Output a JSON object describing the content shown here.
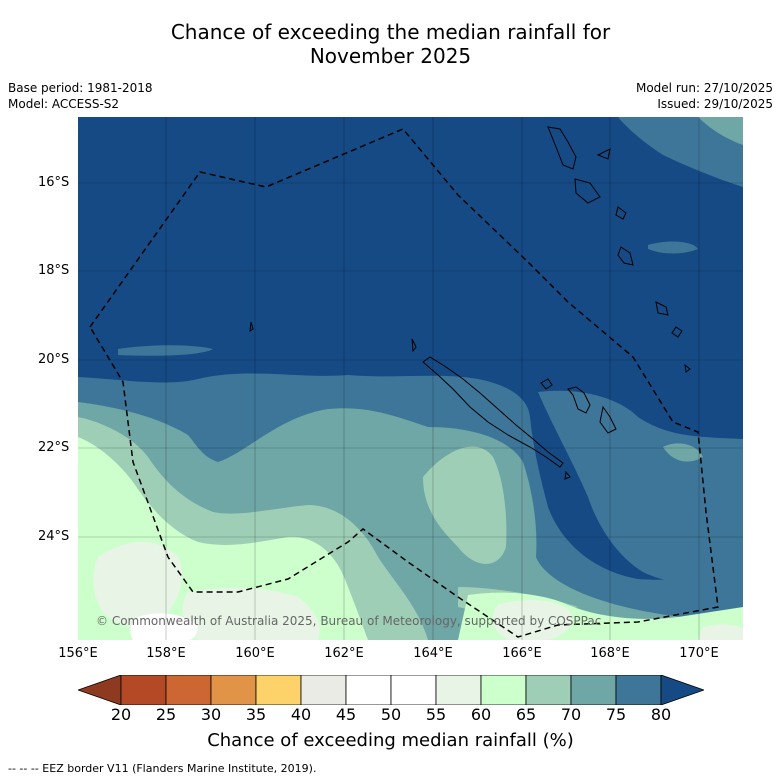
{
  "title_line1": "Chance of exceeding the median rainfall for",
  "title_line2": "November 2025",
  "meta_left": {
    "base_period": "Base period: 1981-2018",
    "model": "Model: ACCESS-S2"
  },
  "meta_right": {
    "model_run": "Model run: 27/10/2025",
    "issued": "Issued: 29/10/2025"
  },
  "lat_labels": [
    "16°S",
    "18°S",
    "20°S",
    "22°S",
    "24°S"
  ],
  "lon_labels": [
    "156°E",
    "158°E",
    "160°E",
    "162°E",
    "164°E",
    "166°E",
    "168°E",
    "170°E"
  ],
  "copyright": "© Commonwealth of Australia 2025, Bureau of Meteorology, supported by COSPPac",
  "colorbar": {
    "ticks": [
      "20",
      "25",
      "30",
      "35",
      "40",
      "45",
      "50",
      "55",
      "60",
      "65",
      "70",
      "75",
      "80"
    ],
    "label": "Chance of exceeding median rainfall (%)",
    "colors": [
      "#8e3a20",
      "#b34a25",
      "#cc6633",
      "#e19447",
      "#fdd26b",
      "#ebebe6",
      "#ffffff",
      "#ffffff",
      "#e8f5e6",
      "#ccffcc",
      "#9ecfb6",
      "#6fa6a6",
      "#3e7699",
      "#154a85"
    ]
  },
  "footnote": "--  --  -- EEZ border V11 (Flanders Marine Institute, 2019).",
  "palette": {
    "p75_80": "#154a85",
    "p70_75": "#3e7699",
    "p65_70": "#6fa6a6",
    "p60_65": "#9ecfb6",
    "p55_60": "#ccffcc",
    "p50_55": "#e8f5e6",
    "p45_50": "#ffffff"
  }
}
